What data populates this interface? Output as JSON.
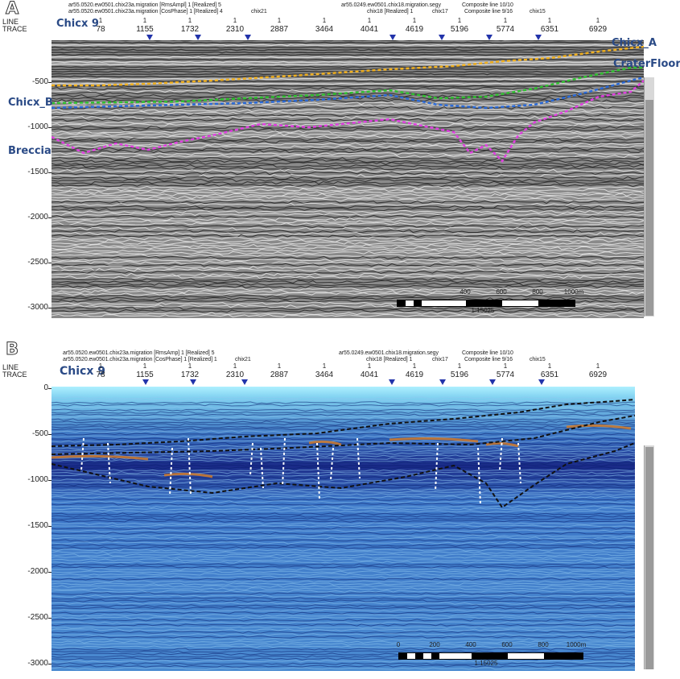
{
  "panel_a": {
    "letter": "A",
    "header_left_1": "ar55.0520.ew0501.chix23a.migration [RmsAmpl] 1 [Realized] 5",
    "header_left_2": "ar55.0520.ew0501.chix23a.migration [CosPhase] 1 [Realized] 4",
    "header_mid": "chix21",
    "header_right_1": "ar55.0249.ew0501.chix18.migration.segy",
    "header_right_2": "chix18 [Realized] 1",
    "header_chix17": "chix17",
    "header_comp_1": "Composite line 10/10",
    "header_comp_2": "Composite line 9/16",
    "header_chix15": "chix15",
    "line_label": "LINE",
    "trace_label": "TRACE",
    "title": "Chicx 9",
    "trace_numbers": [
      "78",
      "1155",
      "1732",
      "2310",
      "2887",
      "3464",
      "4041",
      "4619",
      "5196",
      "5774",
      "6351",
      "6929"
    ],
    "y_ticks": [
      "-500",
      "-1000",
      "-1500",
      "-2000",
      "-2500",
      "-3000"
    ],
    "horizon_labels": {
      "chicx_a": "Chicx_A",
      "crater_floor": "CraterFloor",
      "chicx_b": "Chicx_B",
      "breccia": "Breccia"
    },
    "scale_numbers": [
      "400",
      "600",
      "800",
      "1000m"
    ],
    "scale_caption": "1:15025"
  },
  "panel_b": {
    "letter": "B",
    "header_left_1": "ar55.0520.ew0501.chix23a.migration [RmsAmp] 1 [Realized] 5",
    "header_left_2": "ar55.0520.ew0501.chix23a.migration [CosPhase] 1 [Realized] 1",
    "header_mid": "chix21",
    "header_right_1": "ar55.0249.ew0501.chix18.migration.segy",
    "header_right_2": "chix18 [Realized] 1",
    "header_chix17": "chix17",
    "header_comp_1": "Composite line 10/10",
    "header_comp_2": "Composite line 9/16",
    "header_chix15": "chix15",
    "line_label": "LINE",
    "trace_label": "TRACE",
    "title": "Chicx 9",
    "trace_numbers": [
      "78",
      "1155",
      "1732",
      "2310",
      "2887",
      "3464",
      "4041",
      "4619",
      "5196",
      "5774",
      "6351",
      "6929"
    ],
    "y_ticks": [
      "0",
      "-500",
      "-1000",
      "-1500",
      "-2000",
      "-2500",
      "-3000"
    ],
    "scale_numbers": [
      "0",
      "200",
      "400",
      "600",
      "800",
      "1000m"
    ],
    "scale_caption": "1:15025"
  },
  "colors": {
    "horizon_chicx_a": "#f0b020",
    "horizon_crater_floor": "#2a6ad8",
    "horizon_chicx_b": "#30c030",
    "horizon_breccia": "#e040e0",
    "label_blue": "#2a4a86",
    "marker_blue": "#2233aa",
    "panel_b_water": "#aef0ff"
  },
  "icons": {
    "trace_marker": "down-triangle-marker"
  }
}
